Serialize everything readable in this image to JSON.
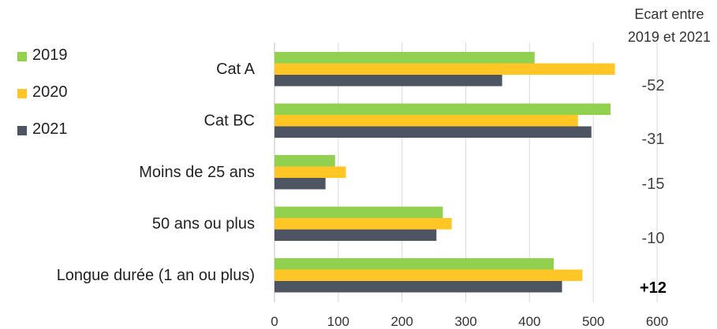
{
  "chart_data": {
    "type": "bar",
    "orientation": "horizontal",
    "title": "",
    "categories": [
      "Cat A",
      "Cat BC",
      "Moins de 25 ans",
      "50 ans ou plus",
      "Longue durée (1 an ou plus)"
    ],
    "series": [
      {
        "name": "2019",
        "color": "#92d050",
        "values": [
          408,
          527,
          95,
          264,
          438
        ]
      },
      {
        "name": "2020",
        "color": "#ffc625",
        "values": [
          534,
          476,
          112,
          278,
          483
        ]
      },
      {
        "name": "2021",
        "color": "#4d5562",
        "values": [
          357,
          497,
          80,
          254,
          451
        ]
      }
    ],
    "x_ticks": [
      0,
      100,
      200,
      300,
      400,
      500,
      600
    ],
    "xlim": [
      0,
      600
    ],
    "grid": true,
    "legend_position": "top-left",
    "annotation_header": [
      "Ecart entre",
      "2019 et 2021"
    ],
    "annotations": [
      "-52",
      "-31",
      "-15",
      "-10",
      "+12"
    ]
  }
}
